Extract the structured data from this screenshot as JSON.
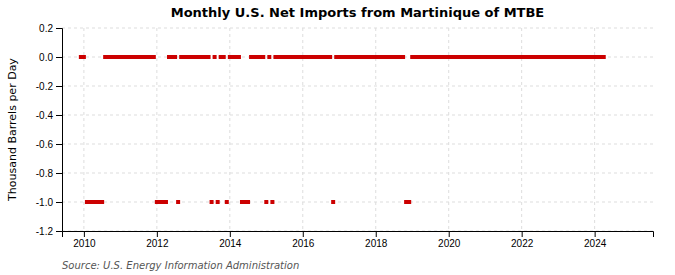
{
  "chart_data": {
    "type": "scatter",
    "title": "Monthly U.S. Net Imports from Martinique of MTBE",
    "ylabel": "Thousand Barrels per Day",
    "annotations": [
      "Source: U.S. Energy Information Administration"
    ],
    "color": "#cc0000",
    "marker": "square",
    "grid": true,
    "xlim": [
      2009.4,
      2025.6
    ],
    "xticks": [
      2010,
      2012,
      2014,
      2016,
      2018,
      2020,
      2022,
      2024
    ],
    "ylim": [
      -1.2,
      0.2
    ],
    "yticks": [
      -1.2,
      {
        "value": -1.0,
        "label": "-1.0"
      },
      -0.8,
      -0.6,
      -0.4,
      -0.2,
      {
        "value": 0.0,
        "label": "0.0"
      },
      0.2
    ],
    "x": [
      2009.917,
      2010.0,
      2010.083,
      2010.167,
      2010.25,
      2010.333,
      2010.417,
      2010.5,
      2010.583,
      2010.667,
      2010.75,
      2010.833,
      2010.917,
      2011.0,
      2011.083,
      2011.167,
      2011.25,
      2011.333,
      2011.417,
      2011.5,
      2011.583,
      2011.667,
      2011.75,
      2011.833,
      2011.917,
      2012.0,
      2012.083,
      2012.167,
      2012.25,
      2012.333,
      2012.417,
      2012.5,
      2012.583,
      2012.667,
      2012.75,
      2012.833,
      2012.917,
      2013.0,
      2013.083,
      2013.167,
      2013.25,
      2013.333,
      2013.417,
      2013.5,
      2013.583,
      2013.667,
      2013.75,
      2013.833,
      2013.917,
      2014.0,
      2014.083,
      2014.167,
      2014.25,
      2014.333,
      2014.417,
      2014.5,
      2014.583,
      2014.667,
      2014.75,
      2014.833,
      2014.917,
      2015.0,
      2015.083,
      2015.167,
      2015.25,
      2015.333,
      2015.417,
      2015.5,
      2015.583,
      2015.667,
      2015.75,
      2015.833,
      2015.917,
      2016.0,
      2016.083,
      2016.167,
      2016.25,
      2016.333,
      2016.417,
      2016.5,
      2016.583,
      2016.667,
      2016.75,
      2016.833,
      2016.917,
      2017.0,
      2017.083,
      2017.167,
      2017.25,
      2017.333,
      2017.417,
      2017.5,
      2017.583,
      2017.667,
      2017.75,
      2017.833,
      2017.917,
      2018.0,
      2018.083,
      2018.167,
      2018.25,
      2018.333,
      2018.417,
      2018.5,
      2018.583,
      2018.667,
      2018.75,
      2018.833,
      2018.917,
      2019.0,
      2019.083,
      2019.167,
      2019.25,
      2019.333,
      2019.417,
      2019.5,
      2019.583,
      2019.667,
      2019.75,
      2019.833,
      2019.917,
      2020.0,
      2020.083,
      2020.167,
      2020.25,
      2020.333,
      2020.417,
      2020.5,
      2020.583,
      2020.667,
      2020.75,
      2020.833,
      2020.917,
      2021.0,
      2021.083,
      2021.167,
      2021.25,
      2021.333,
      2021.417,
      2021.5,
      2021.583,
      2021.667,
      2021.75,
      2021.833,
      2021.917,
      2022.0,
      2022.083,
      2022.167,
      2022.25,
      2022.333,
      2022.417,
      2022.5,
      2022.583,
      2022.667,
      2022.75,
      2022.833,
      2022.917,
      2023.0,
      2023.083,
      2023.167,
      2023.25,
      2023.333,
      2023.417,
      2023.5,
      2023.583,
      2023.667,
      2023.75,
      2023.833,
      2023.917,
      2024.0,
      2024.083,
      2024.167,
      2024.25
    ],
    "values": [
      0,
      0,
      -1,
      -1,
      -1,
      -1,
      -1,
      -1,
      0,
      0,
      0,
      0,
      0,
      0,
      0,
      0,
      0,
      0,
      0,
      0,
      0,
      0,
      0,
      0,
      0,
      -1,
      -1,
      -1,
      -1,
      0,
      0,
      0,
      -1,
      0,
      0,
      0,
      0,
      0,
      0,
      0,
      0,
      0,
      0,
      -1,
      0,
      -1,
      0,
      0,
      -1,
      0,
      0,
      0,
      0,
      -1,
      -1,
      -1,
      0,
      0,
      0,
      0,
      0,
      -1,
      0,
      -1,
      0,
      0,
      0,
      0,
      0,
      0,
      0,
      0,
      0,
      0,
      0,
      0,
      0,
      0,
      0,
      0,
      0,
      0,
      0,
      -1,
      0,
      0,
      0,
      0,
      0,
      0,
      0,
      0,
      0,
      0,
      0,
      0,
      0,
      0,
      0,
      0,
      0,
      0,
      0,
      0,
      0,
      0,
      0,
      -1,
      -1,
      0,
      0,
      0,
      0,
      0,
      0,
      0,
      0,
      0,
      0,
      0,
      0,
      0,
      0,
      0,
      0,
      0,
      0,
      0,
      0,
      0,
      0,
      0,
      0,
      0,
      0,
      0,
      0,
      0,
      0,
      0,
      0,
      0,
      0,
      0,
      0,
      0,
      0,
      0,
      0,
      0,
      0,
      0,
      0,
      0,
      0,
      0,
      0,
      0,
      0,
      0,
      0,
      0,
      0,
      0,
      0,
      0,
      0,
      0,
      0,
      0,
      0,
      0,
      0
    ]
  }
}
